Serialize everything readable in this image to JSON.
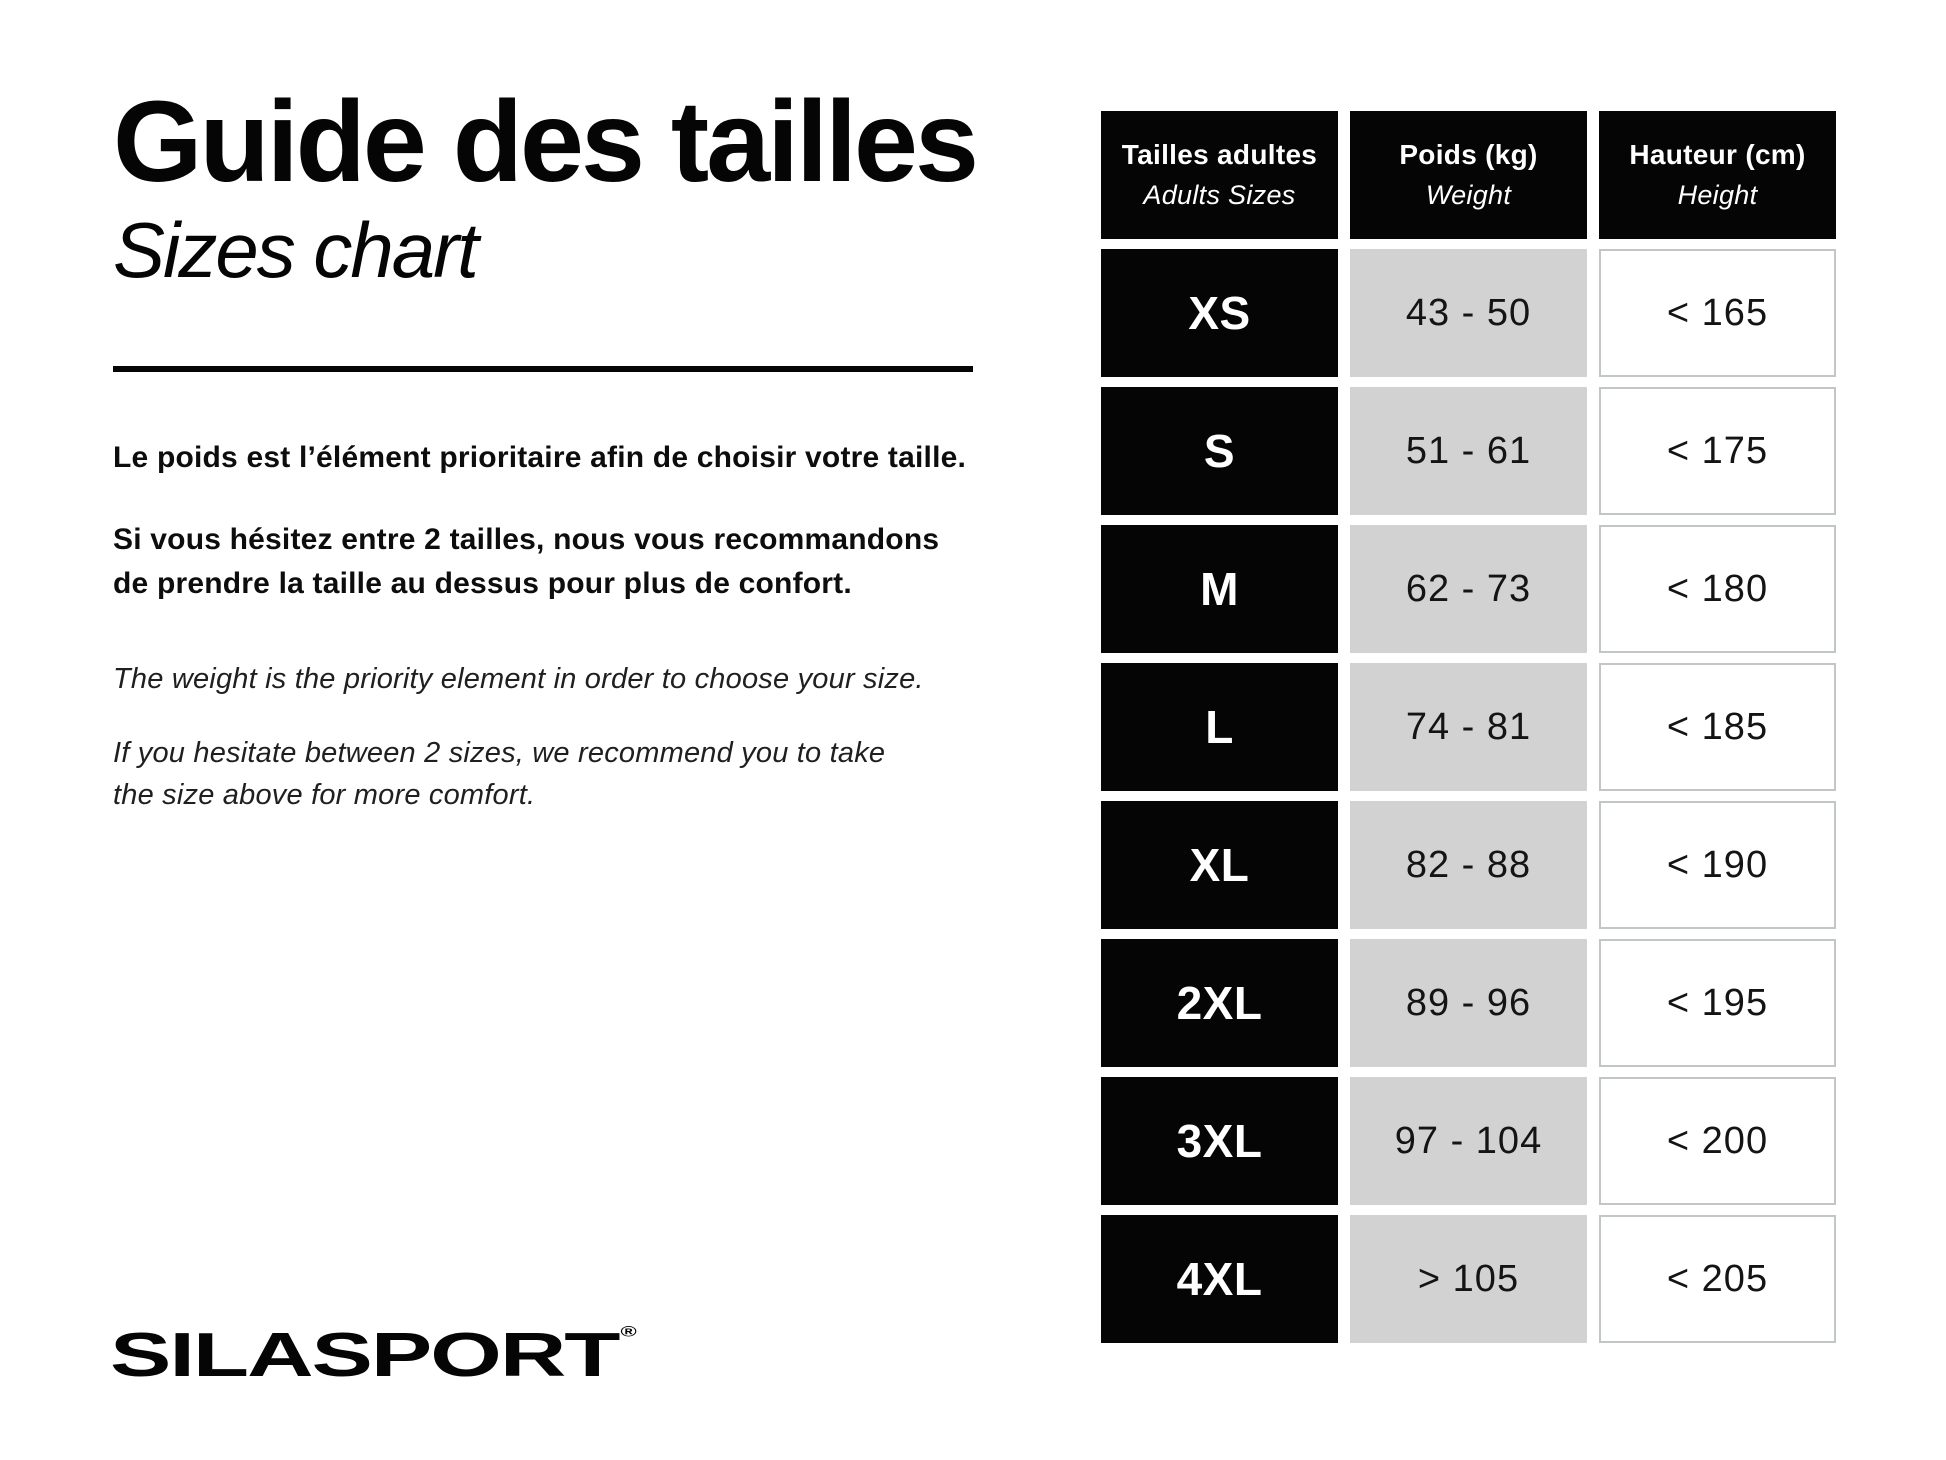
{
  "header": {
    "title_fr": "Guide des tailles",
    "title_en": "Sizes chart"
  },
  "intro": {
    "fr_priority": "Le poids est l’élément prioritaire afin de choisir votre taille.",
    "fr_hesitate_line1": "Si vous hésitez entre 2 tailles, nous vous recommandons",
    "fr_hesitate_line2": "de prendre la taille au dessus pour plus de confort.",
    "en_priority": "The weight is the priority element in order to choose your size.",
    "en_hesitate_line1": "If you hesitate between 2 sizes, we recommend you to take",
    "en_hesitate_line2": "the size above for more comfort."
  },
  "table": {
    "columns": [
      {
        "label_fr": "Tailles adultes",
        "label_en": "Adults Sizes"
      },
      {
        "label_fr": "Poids (kg)",
        "label_en": "Weight"
      },
      {
        "label_fr": "Hauteur (cm)",
        "label_en": "Height"
      }
    ],
    "rows": [
      {
        "size": "XS",
        "weight_kg": "43 - 50",
        "height_cm": "< 165"
      },
      {
        "size": "S",
        "weight_kg": "51 - 61",
        "height_cm": "< 175"
      },
      {
        "size": "M",
        "weight_kg": "62 - 73",
        "height_cm": "< 180"
      },
      {
        "size": "L",
        "weight_kg": "74 - 81",
        "height_cm": "< 185"
      },
      {
        "size": "XL",
        "weight_kg": "82 - 88",
        "height_cm": "< 190"
      },
      {
        "size": "2XL",
        "weight_kg": "89 - 96",
        "height_cm": "< 195"
      },
      {
        "size": "3XL",
        "weight_kg": "97 - 104",
        "height_cm": "< 200"
      },
      {
        "size": "4XL",
        "weight_kg": "> 105",
        "height_cm": "< 205"
      }
    ]
  },
  "footer": {
    "brand": "SILASPORT",
    "registered_mark": "®"
  },
  "colors": {
    "black": "#050505",
    "weight_cell_gray": "#d2d2d2",
    "height_cell_border": "#c3c6c6",
    "text_dark": "#141414",
    "white": "#ffffff"
  }
}
